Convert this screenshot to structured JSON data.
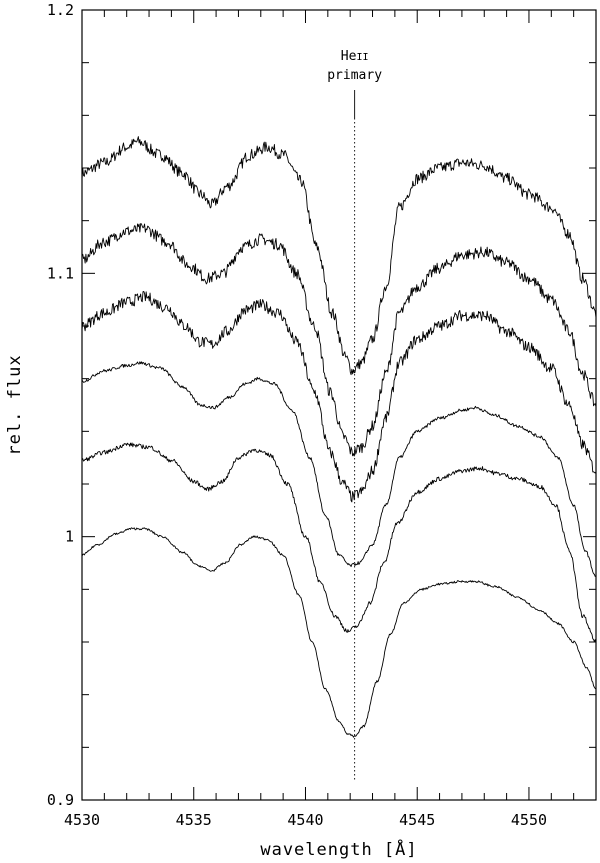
{
  "chart_data": {
    "type": "line",
    "xlabel": "wavelength [Å]",
    "ylabel": "rel. flux",
    "xlim": [
      4530,
      4553
    ],
    "ylim": [
      0.9,
      1.2
    ],
    "x_major_ticks": [
      4530,
      4535,
      4540,
      4545,
      4550
    ],
    "x_tick_labels": [
      "4530",
      "4535",
      "4540",
      "4545",
      "4550"
    ],
    "y_major_ticks": [
      0.9,
      1.0,
      1.1,
      1.2
    ],
    "y_tick_labels": [
      "0.9",
      "1",
      "1.1",
      "1.2"
    ],
    "grid": false,
    "annotation": {
      "line1_main": "He",
      "line1_roman": "II",
      "line2": "primary",
      "x": 4542.2
    },
    "series": [
      {
        "noise": 0.0022,
        "points": [
          [
            4530,
            1.138
          ],
          [
            4531,
            1.142
          ],
          [
            4532,
            1.148
          ],
          [
            4532.5,
            1.15
          ],
          [
            4533.5,
            1.145
          ],
          [
            4534.5,
            1.138
          ],
          [
            4535.3,
            1.13
          ],
          [
            4535.8,
            1.126
          ],
          [
            4536.5,
            1.133
          ],
          [
            4537.5,
            1.145
          ],
          [
            4538.3,
            1.148
          ],
          [
            4539,
            1.145
          ],
          [
            4539.8,
            1.135
          ],
          [
            4540.5,
            1.11
          ],
          [
            4541.2,
            1.085
          ],
          [
            4541.8,
            1.068
          ],
          [
            4542.1,
            1.063
          ],
          [
            4542.5,
            1.066
          ],
          [
            4543,
            1.075
          ],
          [
            4543.6,
            1.095
          ],
          [
            4544.2,
            1.125
          ],
          [
            4545,
            1.136
          ],
          [
            4546,
            1.14
          ],
          [
            4547,
            1.142
          ],
          [
            4548,
            1.141
          ],
          [
            4549,
            1.136
          ],
          [
            4550,
            1.13
          ],
          [
            4551,
            1.125
          ],
          [
            4551.8,
            1.115
          ],
          [
            4552.4,
            1.098
          ],
          [
            4553,
            1.085
          ]
        ]
      },
      {
        "noise": 0.0022,
        "points": [
          [
            4530,
            1.105
          ],
          [
            4531,
            1.112
          ],
          [
            4532,
            1.116
          ],
          [
            4532.8,
            1.117
          ],
          [
            4533.8,
            1.112
          ],
          [
            4534.8,
            1.103
          ],
          [
            4535.6,
            1.098
          ],
          [
            4536.3,
            1.1
          ],
          [
            4537.2,
            1.11
          ],
          [
            4538,
            1.113
          ],
          [
            4538.8,
            1.111
          ],
          [
            4539.6,
            1.1
          ],
          [
            4540.4,
            1.08
          ],
          [
            4541.1,
            1.055
          ],
          [
            4541.7,
            1.038
          ],
          [
            4542.1,
            1.032
          ],
          [
            4542.5,
            1.034
          ],
          [
            4543,
            1.042
          ],
          [
            4543.6,
            1.062
          ],
          [
            4544.2,
            1.085
          ],
          [
            4545,
            1.095
          ],
          [
            4546,
            1.102
          ],
          [
            4547,
            1.107
          ],
          [
            4548,
            1.108
          ],
          [
            4549,
            1.104
          ],
          [
            4550,
            1.098
          ],
          [
            4551,
            1.09
          ],
          [
            4551.8,
            1.078
          ],
          [
            4552.4,
            1.062
          ],
          [
            4553,
            1.05
          ]
        ]
      },
      {
        "noise": 0.0022,
        "points": [
          [
            4530,
            1.08
          ],
          [
            4531,
            1.085
          ],
          [
            4532,
            1.089
          ],
          [
            4532.8,
            1.091
          ],
          [
            4533.8,
            1.087
          ],
          [
            4534.6,
            1.08
          ],
          [
            4535.3,
            1.074
          ],
          [
            4535.8,
            1.073
          ],
          [
            4536.5,
            1.078
          ],
          [
            4537.3,
            1.086
          ],
          [
            4538,
            1.088
          ],
          [
            4538.8,
            1.085
          ],
          [
            4539.6,
            1.074
          ],
          [
            4540.4,
            1.055
          ],
          [
            4541.1,
            1.032
          ],
          [
            4541.7,
            1.02
          ],
          [
            4542.1,
            1.015
          ],
          [
            4542.5,
            1.017
          ],
          [
            4543,
            1.025
          ],
          [
            4543.6,
            1.045
          ],
          [
            4544.2,
            1.066
          ],
          [
            4545,
            1.075
          ],
          [
            4546,
            1.08
          ],
          [
            4547,
            1.084
          ],
          [
            4548,
            1.084
          ],
          [
            4549,
            1.078
          ],
          [
            4550,
            1.072
          ],
          [
            4551,
            1.064
          ],
          [
            4551.8,
            1.05
          ],
          [
            4552.4,
            1.035
          ],
          [
            4553,
            1.025
          ]
        ]
      },
      {
        "noise": 0.0006,
        "points": [
          [
            4530,
            1.059
          ],
          [
            4531,
            1.063
          ],
          [
            4532,
            1.065
          ],
          [
            4532.6,
            1.066
          ],
          [
            4533.5,
            1.064
          ],
          [
            4534.5,
            1.057
          ],
          [
            4535.3,
            1.05
          ],
          [
            4535.9,
            1.049
          ],
          [
            4536.6,
            1.053
          ],
          [
            4537.3,
            1.058
          ],
          [
            4537.9,
            1.06
          ],
          [
            4538.6,
            1.058
          ],
          [
            4539.4,
            1.048
          ],
          [
            4540.2,
            1.03
          ],
          [
            4540.9,
            1.008
          ],
          [
            4541.5,
            0.993
          ],
          [
            4542,
            0.989
          ],
          [
            4542.4,
            0.99
          ],
          [
            4543,
            0.997
          ],
          [
            4543.6,
            1.012
          ],
          [
            4544.2,
            1.03
          ],
          [
            4545,
            1.04
          ],
          [
            4546,
            1.045
          ],
          [
            4547,
            1.048
          ],
          [
            4547.6,
            1.049
          ],
          [
            4548.5,
            1.046
          ],
          [
            4549.5,
            1.042
          ],
          [
            4550.5,
            1.038
          ],
          [
            4551.3,
            1.03
          ],
          [
            4552,
            1.012
          ],
          [
            4552.5,
            0.995
          ],
          [
            4553,
            0.985
          ]
        ]
      },
      {
        "noise": 0.0008,
        "points": [
          [
            4530,
            1.029
          ],
          [
            4531,
            1.032
          ],
          [
            4532,
            1.035
          ],
          [
            4533,
            1.034
          ],
          [
            4534,
            1.029
          ],
          [
            4535,
            1.021
          ],
          [
            4535.6,
            1.018
          ],
          [
            4536.3,
            1.021
          ],
          [
            4537,
            1.03
          ],
          [
            4537.7,
            1.033
          ],
          [
            4538.4,
            1.031
          ],
          [
            4539.2,
            1.02
          ],
          [
            4540,
            1.0
          ],
          [
            4540.7,
            0.982
          ],
          [
            4541.3,
            0.97
          ],
          [
            4541.9,
            0.964
          ],
          [
            4542.3,
            0.966
          ],
          [
            4542.9,
            0.975
          ],
          [
            4543.5,
            0.99
          ],
          [
            4544.1,
            1.005
          ],
          [
            4545,
            1.017
          ],
          [
            4546,
            1.022
          ],
          [
            4547,
            1.025
          ],
          [
            4547.8,
            1.026
          ],
          [
            4548.6,
            1.024
          ],
          [
            4549.5,
            1.022
          ],
          [
            4550.5,
            1.019
          ],
          [
            4551.2,
            1.012
          ],
          [
            4551.8,
            0.995
          ],
          [
            4552.4,
            0.97
          ],
          [
            4553,
            0.96
          ]
        ]
      },
      {
        "noise": 0.0004,
        "points": [
          [
            4530,
            0.993
          ],
          [
            4530.7,
            0.997
          ],
          [
            4531.5,
            1.001
          ],
          [
            4532.2,
            1.003
          ],
          [
            4532.8,
            1.003
          ],
          [
            4533.6,
            1.0
          ],
          [
            4534.5,
            0.994
          ],
          [
            4535.2,
            0.989
          ],
          [
            4535.8,
            0.987
          ],
          [
            4536.4,
            0.99
          ],
          [
            4537.1,
            0.997
          ],
          [
            4537.7,
            1.0
          ],
          [
            4538.3,
            0.999
          ],
          [
            4539,
            0.993
          ],
          [
            4539.7,
            0.978
          ],
          [
            4540.3,
            0.96
          ],
          [
            4540.9,
            0.942
          ],
          [
            4541.5,
            0.93
          ],
          [
            4541.9,
            0.925
          ],
          [
            4542.2,
            0.924
          ],
          [
            4542.6,
            0.928
          ],
          [
            4543.2,
            0.945
          ],
          [
            4543.8,
            0.963
          ],
          [
            4544.4,
            0.975
          ],
          [
            4545.2,
            0.98
          ],
          [
            4546,
            0.982
          ],
          [
            4547,
            0.983
          ],
          [
            4547.6,
            0.983
          ],
          [
            4548.5,
            0.981
          ],
          [
            4549.5,
            0.977
          ],
          [
            4550.5,
            0.972
          ],
          [
            4551.3,
            0.967
          ],
          [
            4552,
            0.96
          ],
          [
            4552.6,
            0.95
          ],
          [
            4553,
            0.942
          ]
        ]
      }
    ]
  }
}
